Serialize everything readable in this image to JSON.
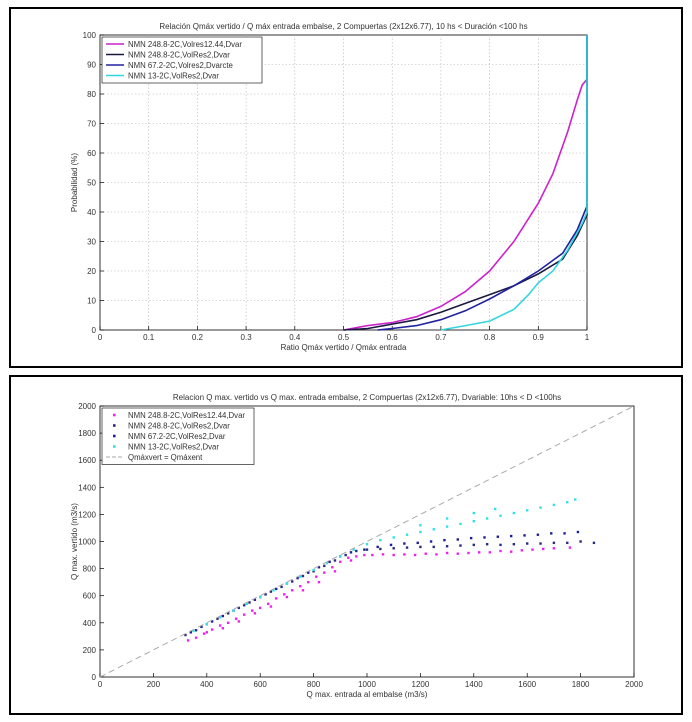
{
  "chart_data": [
    {
      "type": "line",
      "title": "Relación Qmáx vertido / Q máx entrada embalse, 2 Compuertas (2x12x6.77), 10 hs < Duración <100 hs",
      "xlabel": "Ratio Qmáx vertido / Qmáx entrada",
      "ylabel": "Probabilidad (%)",
      "xlim": [
        0,
        1
      ],
      "ylim": [
        0,
        100
      ],
      "xticks": [
        "0",
        "0.1",
        "0.2",
        "0.3",
        "0.4",
        "0.5",
        "0.6",
        "0.7",
        "0.8",
        "0.9",
        "1"
      ],
      "yticks": [
        "0",
        "10",
        "20",
        "30",
        "40",
        "50",
        "60",
        "70",
        "80",
        "90",
        "100"
      ],
      "grid": true,
      "legend_position": "top-left",
      "series": [
        {
          "name": "NMN 248.8-2C,Volres12.44,Dvar",
          "color": "#cc22cc",
          "points": [
            [
              0.5,
              0
            ],
            [
              0.55,
              1.5
            ],
            [
              0.6,
              2.5
            ],
            [
              0.65,
              4.5
            ],
            [
              0.7,
              8
            ],
            [
              0.75,
              13
            ],
            [
              0.8,
              20
            ],
            [
              0.85,
              30
            ],
            [
              0.9,
              43
            ],
            [
              0.93,
              53
            ],
            [
              0.96,
              67
            ],
            [
              0.98,
              78
            ],
            [
              0.99,
              83
            ],
            [
              1.0,
              85
            ],
            [
              1.0,
              100
            ]
          ]
        },
        {
          "name": "NMN 248.8-2C,VolRes2,Dvar",
          "color": "#1a1a40",
          "points": [
            [
              0.5,
              0
            ],
            [
              0.55,
              0.5
            ],
            [
              0.6,
              2
            ],
            [
              0.65,
              3.5
            ],
            [
              0.7,
              6
            ],
            [
              0.75,
              9
            ],
            [
              0.8,
              12
            ],
            [
              0.85,
              15
            ],
            [
              0.9,
              19
            ],
            [
              0.95,
              24
            ],
            [
              0.98,
              32
            ],
            [
              1.0,
              39
            ],
            [
              1.0,
              100
            ]
          ]
        },
        {
          "name": "NMN 67.2-2C,Volres2,Dvarcte",
          "color": "#2222a0",
          "points": [
            [
              0.57,
              0
            ],
            [
              0.6,
              0.5
            ],
            [
              0.65,
              1.5
            ],
            [
              0.7,
              3.5
            ],
            [
              0.75,
              6.5
            ],
            [
              0.8,
              10.5
            ],
            [
              0.85,
              15
            ],
            [
              0.9,
              20
            ],
            [
              0.95,
              26
            ],
            [
              0.98,
              34
            ],
            [
              1.0,
              42
            ],
            [
              1.0,
              100
            ]
          ]
        },
        {
          "name": "NMN 13-2C,VolRes2,Dvar",
          "color": "#33d6dd",
          "points": [
            [
              0.7,
              0
            ],
            [
              0.75,
              1.5
            ],
            [
              0.8,
              3
            ],
            [
              0.85,
              7
            ],
            [
              0.88,
              12
            ],
            [
              0.9,
              16
            ],
            [
              0.93,
              20
            ],
            [
              0.96,
              27
            ],
            [
              0.99,
              36
            ],
            [
              1.0,
              40
            ],
            [
              1.0,
              100
            ]
          ]
        }
      ]
    },
    {
      "type": "scatter",
      "title": "Relacion Q max. vertido vs Q max. entrada embalse, 2 Compuertas (2x12x6.77), Dvariable: 10hs < D <100hs",
      "xlabel": "Q max. entrada al embalse (m3/s)",
      "ylabel": "Q max. vertido (m3/s)",
      "xlim": [
        0,
        2000
      ],
      "ylim": [
        0,
        2000
      ],
      "xticks": [
        "0",
        "200",
        "400",
        "600",
        "800",
        "1000",
        "1200",
        "1400",
        "1600",
        "1800",
        "2000"
      ],
      "yticks": [
        "0",
        "200",
        "400",
        "600",
        "800",
        "1000",
        "1200",
        "1400",
        "1600",
        "1800",
        "2000"
      ],
      "grid": false,
      "legend_position": "top-left",
      "series": [
        {
          "name": "NMN 248.8-2C,VolRes12.44,Dvar",
          "color": "#ee22ee",
          "points": [
            [
              330,
              270
            ],
            [
              360,
              290
            ],
            [
              390,
              320
            ],
            [
              420,
              350
            ],
            [
              450,
              380
            ],
            [
              480,
              400
            ],
            [
              510,
              430
            ],
            [
              540,
              460
            ],
            [
              570,
              490
            ],
            [
              600,
              510
            ],
            [
              630,
              540
            ],
            [
              660,
              580
            ],
            [
              690,
              610
            ],
            [
              720,
              640
            ],
            [
              750,
              670
            ],
            [
              780,
              700
            ],
            [
              810,
              740
            ],
            [
              840,
              770
            ],
            [
              870,
              810
            ],
            [
              900,
              850
            ],
            [
              930,
              880
            ],
            [
              960,
              890
            ],
            [
              990,
              900
            ],
            [
              1020,
              900
            ],
            [
              1060,
              905
            ],
            [
              1100,
              900
            ],
            [
              1140,
              905
            ],
            [
              1180,
              900
            ],
            [
              1220,
              910
            ],
            [
              1260,
              905
            ],
            [
              1300,
              915
            ],
            [
              1340,
              910
            ],
            [
              1380,
              915
            ],
            [
              1420,
              920
            ],
            [
              1460,
              920
            ],
            [
              1500,
              930
            ],
            [
              1540,
              925
            ],
            [
              1580,
              935
            ],
            [
              1620,
              940
            ],
            [
              1660,
              945
            ],
            [
              1700,
              950
            ],
            [
              1760,
              955
            ],
            [
              400,
              330
            ],
            [
              460,
              360
            ],
            [
              520,
              410
            ],
            [
              580,
              470
            ],
            [
              640,
              520
            ],
            [
              700,
              590
            ],
            [
              760,
              640
            ],
            [
              820,
              700
            ],
            [
              880,
              780
            ],
            [
              940,
              860
            ]
          ]
        },
        {
          "name": "NMN 248.8-2C,VolRes2,Dvar",
          "color": "#2a2a80",
          "points": [
            [
              320,
              310
            ],
            [
              360,
              345
            ],
            [
              400,
              390
            ],
            [
              440,
              430
            ],
            [
              480,
              470
            ],
            [
              520,
              510
            ],
            [
              560,
              550
            ],
            [
              600,
              590
            ],
            [
              640,
              630
            ],
            [
              680,
              665
            ],
            [
              720,
              705
            ],
            [
              760,
              745
            ],
            [
              800,
              780
            ],
            [
              840,
              820
            ],
            [
              880,
              860
            ],
            [
              920,
              900
            ],
            [
              960,
              930
            ],
            [
              1000,
              940
            ],
            [
              1050,
              945
            ],
            [
              1100,
              950
            ],
            [
              1150,
              955
            ],
            [
              1200,
              960
            ],
            [
              1250,
              960
            ],
            [
              1300,
              965
            ],
            [
              1350,
              970
            ],
            [
              1400,
              975
            ],
            [
              1450,
              980
            ],
            [
              1500,
              975
            ],
            [
              1550,
              980
            ],
            [
              1600,
              985
            ],
            [
              1650,
              985
            ],
            [
              1700,
              990
            ],
            [
              1750,
              990
            ],
            [
              1800,
              1000
            ],
            [
              1850,
              990
            ]
          ]
        },
        {
          "name": "NMN 67.2-2C,VolRes2,Dvar",
          "color": "#1f1f9a",
          "points": [
            [
              340,
              330
            ],
            [
              380,
              370
            ],
            [
              420,
              410
            ],
            [
              460,
              450
            ],
            [
              500,
              490
            ],
            [
              540,
              530
            ],
            [
              580,
              570
            ],
            [
              620,
              610
            ],
            [
              660,
              650
            ],
            [
              700,
              690
            ],
            [
              740,
              730
            ],
            [
              780,
              770
            ],
            [
              820,
              810
            ],
            [
              860,
              850
            ],
            [
              900,
              890
            ],
            [
              940,
              920
            ],
            [
              990,
              940
            ],
            [
              1040,
              960
            ],
            [
              1090,
              975
            ],
            [
              1140,
              985
            ],
            [
              1190,
              990
            ],
            [
              1240,
              1000
            ],
            [
              1290,
              1010
            ],
            [
              1340,
              1015
            ],
            [
              1390,
              1025
            ],
            [
              1440,
              1030
            ],
            [
              1490,
              1035
            ],
            [
              1540,
              1040
            ],
            [
              1590,
              1045
            ],
            [
              1640,
              1050
            ],
            [
              1690,
              1060
            ],
            [
              1740,
              1060
            ],
            [
              1790,
              1070
            ]
          ]
        },
        {
          "name": "NMN 13-2C,VolRes2,Dvar",
          "color": "#33e0e8",
          "points": [
            [
              350,
              340
            ],
            [
              400,
              390
            ],
            [
              450,
              440
            ],
            [
              500,
              490
            ],
            [
              550,
              540
            ],
            [
              600,
              590
            ],
            [
              650,
              640
            ],
            [
              700,
              690
            ],
            [
              750,
              740
            ],
            [
              800,
              790
            ],
            [
              850,
              840
            ],
            [
              900,
              890
            ],
            [
              950,
              940
            ],
            [
              1000,
              980
            ],
            [
              1050,
              1010
            ],
            [
              1100,
              1030
            ],
            [
              1150,
              1050
            ],
            [
              1200,
              1070
            ],
            [
              1250,
              1090
            ],
            [
              1300,
              1110
            ],
            [
              1350,
              1130
            ],
            [
              1400,
              1150
            ],
            [
              1450,
              1170
            ],
            [
              1500,
              1190
            ],
            [
              1550,
              1210
            ],
            [
              1600,
              1230
            ],
            [
              1650,
              1250
            ],
            [
              1700,
              1270
            ],
            [
              1750,
              1290
            ],
            [
              1780,
              1310
            ],
            [
              1200,
              1120
            ],
            [
              1300,
              1170
            ],
            [
              1400,
              1210
            ],
            [
              1480,
              1240
            ]
          ]
        },
        {
          "name": "Qmáxvert = Qmáxent",
          "color": "#aaaaaa",
          "dashed": true,
          "line": [
            [
              0,
              0
            ],
            [
              2000,
              2000
            ]
          ]
        }
      ]
    }
  ]
}
